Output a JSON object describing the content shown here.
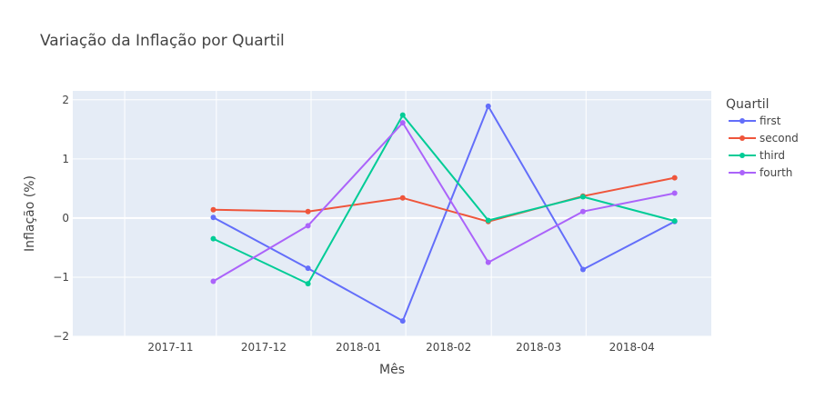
{
  "chart_data": {
    "type": "line",
    "title": "Variação da Inflação por Quartil",
    "xlabel": "Mês",
    "ylabel": "Inflação (%)",
    "ylim": [
      -2,
      2.15
    ],
    "y_ticks": [
      -2,
      -1,
      0,
      1,
      2
    ],
    "y_tick_labels": [
      "−2",
      "−1",
      "0",
      "1",
      "2"
    ],
    "x_ticks": [
      "2017-11",
      "2017-12",
      "2018-01",
      "2018-02",
      "2018-03",
      "2018-04"
    ],
    "x": [
      "2017-11-30",
      "2017-12-31",
      "2018-01-31",
      "2018-02-28",
      "2018-03-31",
      "2018-04-30"
    ],
    "xlim": [
      "2017-10-15",
      "2018-05-12"
    ],
    "grid": true,
    "legend": {
      "title": "Quartil",
      "placement": "right"
    },
    "series": [
      {
        "name": "first",
        "color": "#636efa",
        "values": [
          0.01,
          -0.85,
          -1.74,
          1.89,
          -0.87,
          -0.06
        ]
      },
      {
        "name": "second",
        "color": "#ef553b",
        "values": [
          0.14,
          0.11,
          0.34,
          -0.06,
          0.37,
          0.68
        ]
      },
      {
        "name": "third",
        "color": "#00cc96",
        "values": [
          -0.35,
          -1.11,
          1.74,
          -0.04,
          0.36,
          -0.05
        ]
      },
      {
        "name": "fourth",
        "color": "#ab63fa",
        "values": [
          -1.07,
          -0.13,
          1.61,
          -0.75,
          0.11,
          0.42
        ]
      }
    ]
  }
}
